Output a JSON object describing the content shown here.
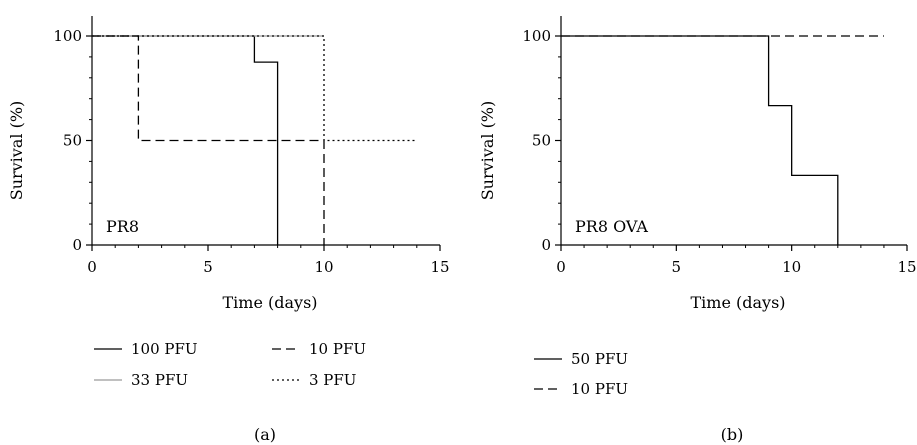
{
  "chart_data": [
    {
      "type": "line",
      "step": true,
      "annotation": "PR8",
      "xlabel": "Time (days)",
      "ylabel": "Survival (%)",
      "xlim": [
        0,
        15
      ],
      "ylim": [
        0,
        100
      ],
      "xticks": [
        "0",
        "5",
        "10",
        "15"
      ],
      "yticks": [
        "0",
        "50",
        "100"
      ],
      "caption": "(a)",
      "series": [
        {
          "name": "100 PFU",
          "style": "solid",
          "color": "#000000",
          "x": [
            0,
            7,
            7,
            8,
            8
          ],
          "y": [
            100,
            100,
            87.5,
            87.5,
            0
          ]
        },
        {
          "name": "33 PFU",
          "style": "solid-gray",
          "color": "#9a9a9a",
          "x": [
            0,
            10
          ],
          "y": [
            100,
            100
          ]
        },
        {
          "name": "10 PFU",
          "style": "dashed",
          "color": "#000000",
          "x": [
            0,
            2,
            2,
            10,
            10
          ],
          "y": [
            100,
            100,
            50,
            50,
            0
          ]
        },
        {
          "name": "3 PFU",
          "style": "dotted",
          "color": "#000000",
          "x": [
            0,
            10,
            10,
            14
          ],
          "y": [
            100,
            100,
            50,
            50
          ]
        }
      ]
    },
    {
      "type": "line",
      "step": true,
      "annotation": "PR8 OVA",
      "xlabel": "Time (days)",
      "ylabel": "Survival (%)",
      "xlim": [
        0,
        15
      ],
      "ylim": [
        0,
        100
      ],
      "xticks": [
        "0",
        "5",
        "10",
        "15"
      ],
      "yticks": [
        "0",
        "50",
        "100"
      ],
      "caption": "(b)",
      "series": [
        {
          "name": "50 PFU",
          "style": "solid",
          "color": "#000000",
          "x": [
            0,
            9,
            9,
            10,
            10,
            12,
            12
          ],
          "y": [
            100,
            100,
            66.7,
            66.7,
            33.3,
            33.3,
            0
          ]
        },
        {
          "name": "10 PFU",
          "style": "dashed",
          "color": "#000000",
          "x": [
            0,
            14
          ],
          "y": [
            100,
            100
          ]
        }
      ]
    }
  ]
}
